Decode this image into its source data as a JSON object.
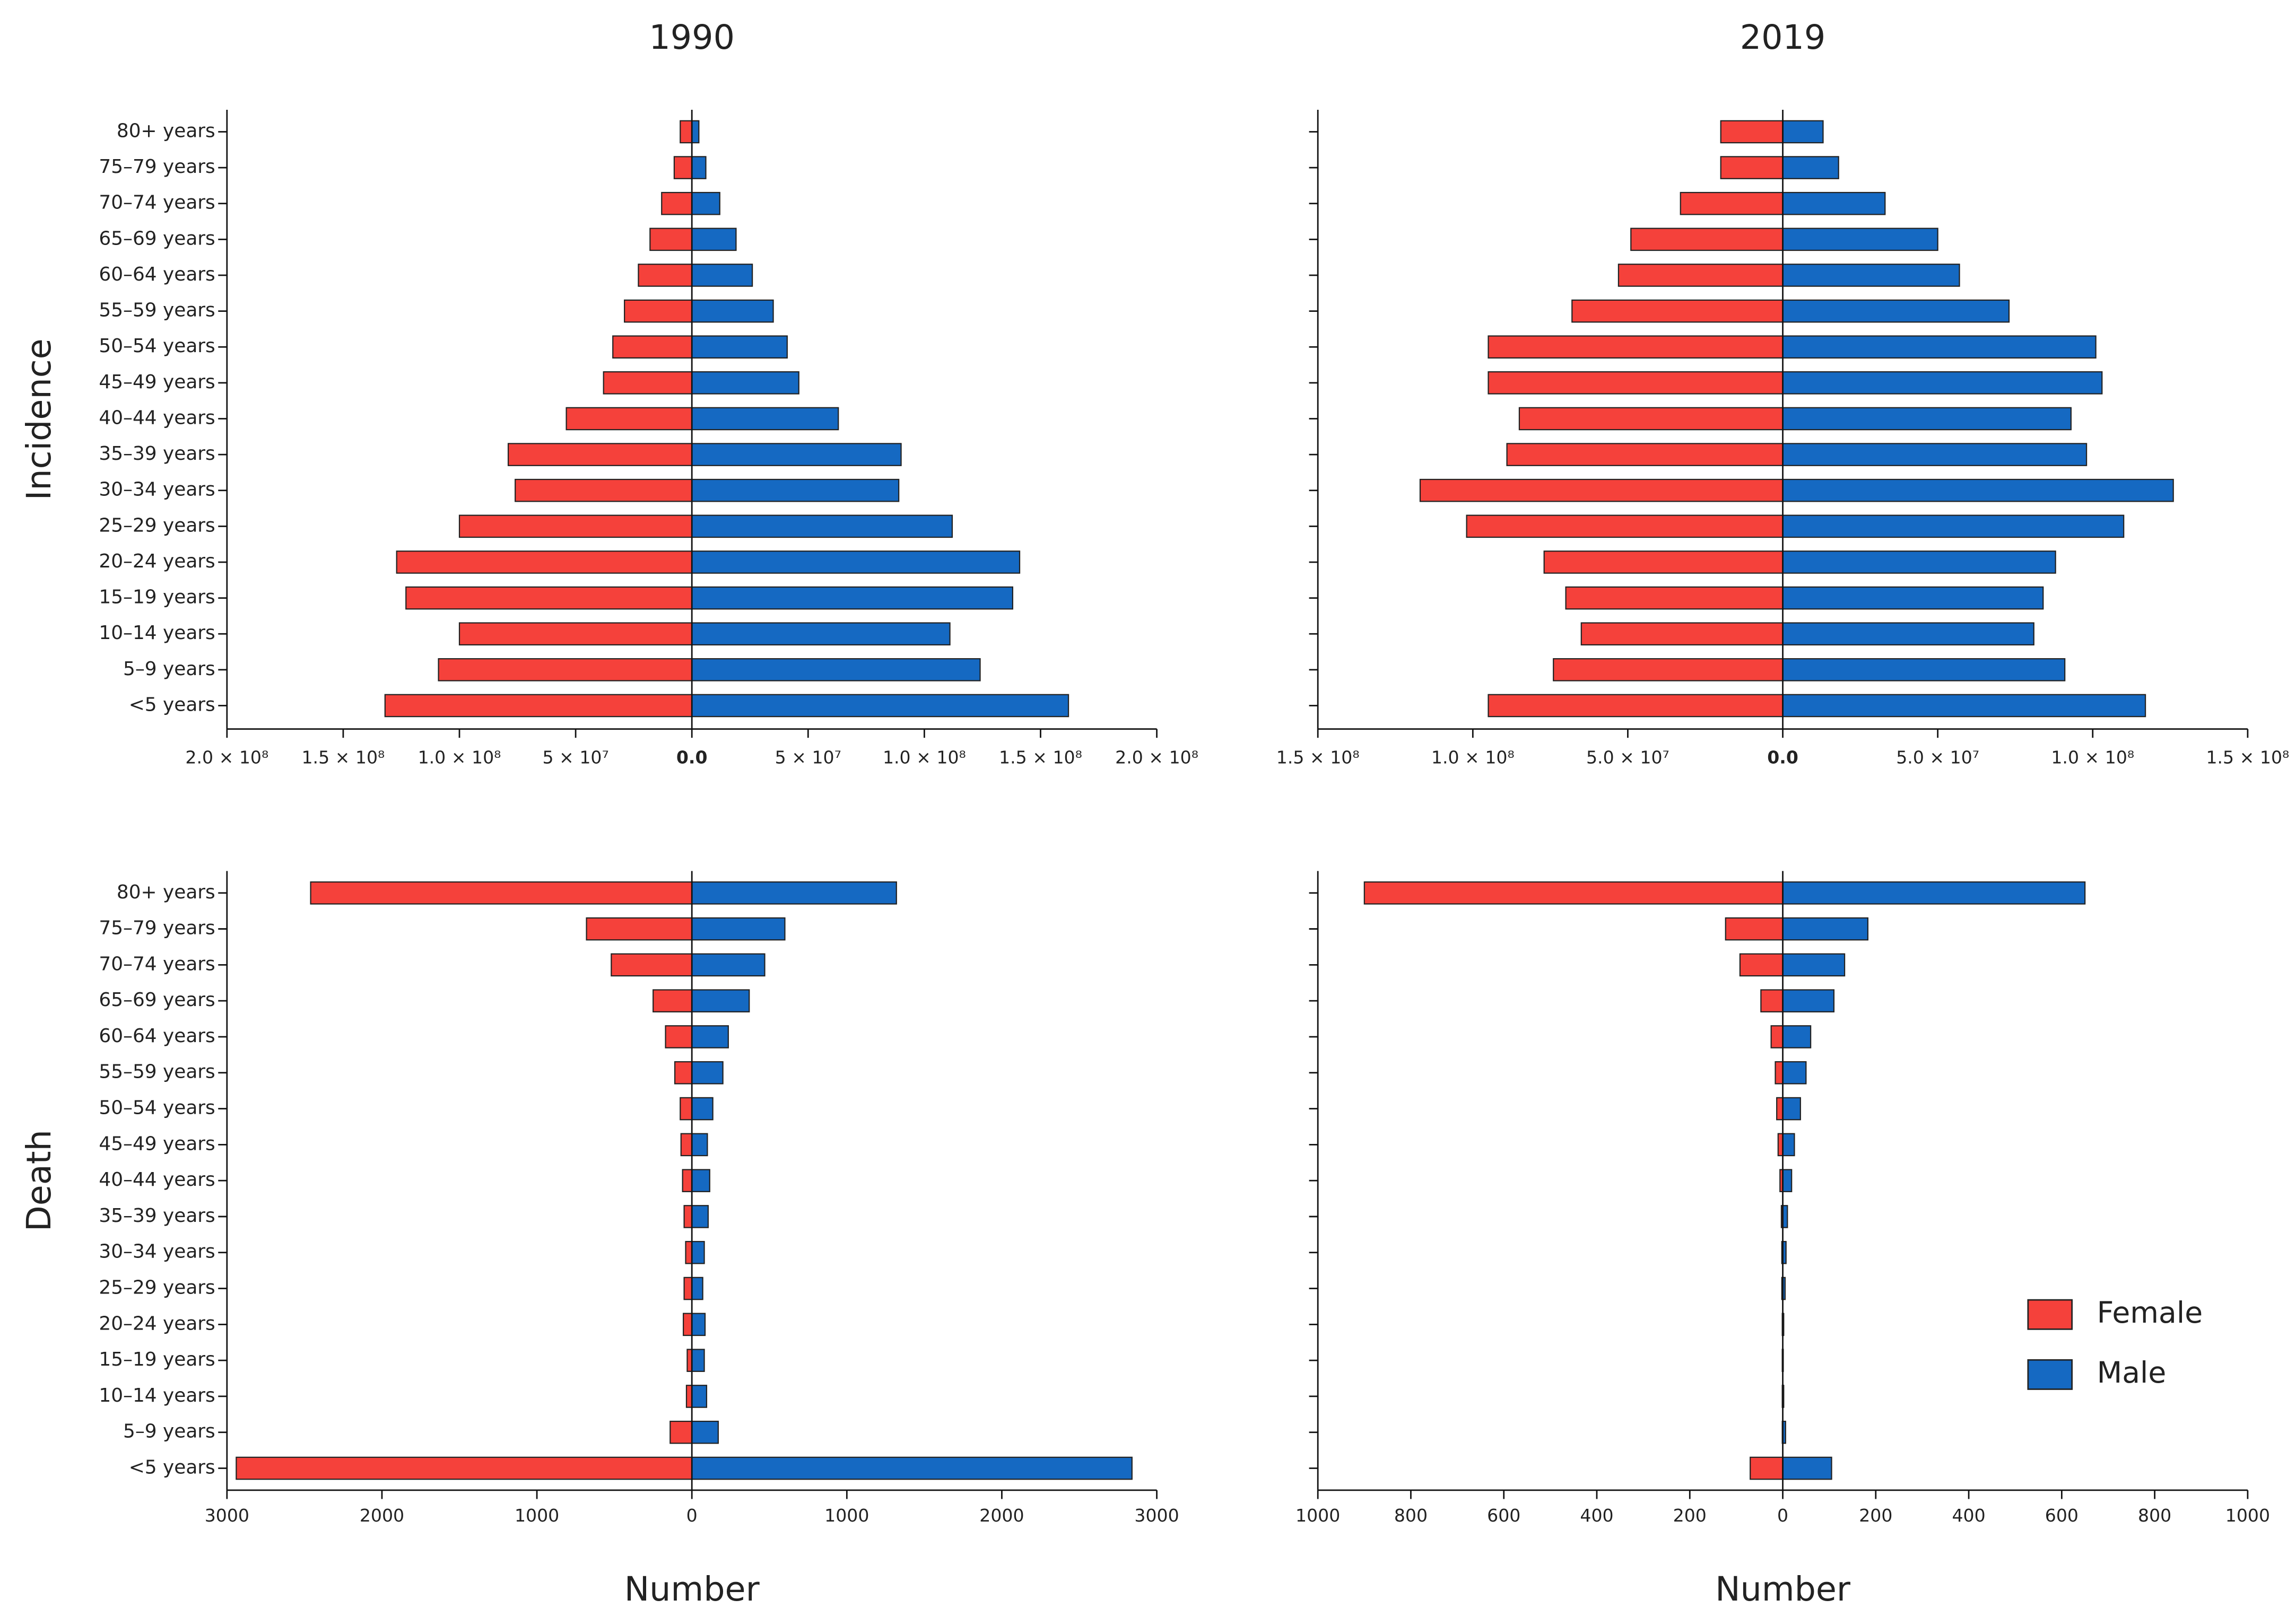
{
  "chart_data": [
    {
      "type": "bar",
      "orientation": "horizontal",
      "title": "1990",
      "ylabel": "Incidence",
      "categories": [
        "80+ years",
        "75–79 years",
        "70–74 years",
        "65–69 years",
        "60–64 years",
        "55–59 years",
        "50–54 years",
        "45–49 years",
        "40–44 years",
        "35–39 years",
        "30–34 years",
        "25–29 years",
        "20–24 years",
        "15–19 years",
        "10–14 years",
        "5–9 years",
        "<5 years"
      ],
      "series": [
        {
          "color": "#f5413b",
          "values": [
            -5000000,
            -7600000,
            -13000000,
            -18000000,
            -23000000,
            -29000000,
            -34000000,
            -38000000,
            -54000000,
            -79000000,
            -76000000,
            -100000000,
            -127000000,
            -123000000,
            -100000000,
            -109000000,
            -132000000
          ]
        },
        {
          "color": "#1569c2",
          "values": [
            3000000,
            6000000,
            12000000,
            19000000,
            26000000,
            35000000,
            41000000,
            46000000,
            63000000,
            90000000,
            89000000,
            112000000,
            141000000,
            138000000,
            111000000,
            124000000,
            162000000
          ]
        }
      ],
      "xlim": [
        -200000000,
        200000000
      ],
      "xticks": [
        {
          "value": -200000000,
          "label": "2.0 × 10⁸"
        },
        {
          "value": -150000000,
          "label": "1.5 × 10⁸"
        },
        {
          "value": -100000000,
          "label": "1.0 × 10⁸"
        },
        {
          "value": -50000000,
          "label": "5 × 10⁷"
        },
        {
          "value": 0,
          "label": "0.0"
        },
        {
          "value": 50000000,
          "label": "5 × 10⁷"
        },
        {
          "value": 100000000,
          "label": "1.0 × 10⁸"
        },
        {
          "value": 150000000,
          "label": "1.5 × 10⁸"
        },
        {
          "value": 200000000,
          "label": "2.0 × 10⁸"
        }
      ]
    },
    {
      "type": "bar",
      "orientation": "horizontal",
      "title": "2019",
      "series": [
        {
          "color": "#f5413b",
          "values": [
            -20000000,
            -20000000,
            -33000000,
            -49000000,
            -53000000,
            -68000000,
            -95000000,
            -95000000,
            -85000000,
            -89000000,
            -117000000,
            -102000000,
            -77000000,
            -70000000,
            -65000000,
            -74000000,
            -95000000
          ]
        },
        {
          "color": "#1569c2",
          "values": [
            13000000,
            18000000,
            33000000,
            50000000,
            57000000,
            73000000,
            101000000,
            103000000,
            93000000,
            98000000,
            126000000,
            110000000,
            88000000,
            84000000,
            81000000,
            91000000,
            117000000
          ]
        }
      ],
      "xlim": [
        -150000000,
        150000000
      ],
      "xticks": [
        {
          "value": -150000000,
          "label": "1.5 × 10⁸"
        },
        {
          "value": -100000000,
          "label": "1.0 × 10⁸"
        },
        {
          "value": -50000000,
          "label": "5.0 × 10⁷"
        },
        {
          "value": 0,
          "label": "0.0"
        },
        {
          "value": 50000000,
          "label": "5.0 × 10⁷"
        },
        {
          "value": 100000000,
          "label": "1.0 × 10⁸"
        },
        {
          "value": 150000000,
          "label": "1.5 × 10⁸"
        }
      ]
    },
    {
      "type": "bar",
      "orientation": "horizontal",
      "ylabel": "Death",
      "xlabel": "Number",
      "categories": [
        "80+ years",
        "75–79 years",
        "70–74 years",
        "65–69 years",
        "60–64 years",
        "55–59 years",
        "50–54 years",
        "45–49 years",
        "40–44 years",
        "35–39 years",
        "30–34 years",
        "25–29 years",
        "20–24 years",
        "15–19 years",
        "10–14 years",
        "5–9 years",
        "<5 years"
      ],
      "series": [
        {
          "color": "#f5413b",
          "values": [
            -2460,
            -680,
            -520,
            -250,
            -170,
            -110,
            -75,
            -70,
            -60,
            -50,
            -40,
            -50,
            -55,
            -30,
            -35,
            -140,
            -2940
          ]
        },
        {
          "color": "#1569c2",
          "values": [
            1320,
            600,
            470,
            370,
            235,
            200,
            135,
            100,
            115,
            105,
            80,
            70,
            85,
            80,
            95,
            170,
            2840
          ]
        }
      ],
      "xlim": [
        -3000,
        3000
      ],
      "xticks": [
        {
          "value": -3000,
          "label": "3000"
        },
        {
          "value": -2000,
          "label": "2000"
        },
        {
          "value": -1000,
          "label": "1000"
        },
        0,
        1000,
        2000,
        3000
      ]
    },
    {
      "type": "bar",
      "orientation": "horizontal",
      "xlabel": "Number",
      "legend": "lower right",
      "series": [
        {
          "name": "Female",
          "color": "#f5413b",
          "values": [
            -900,
            -123,
            -92,
            -47,
            -25,
            -16,
            -13,
            -10,
            -6,
            -3,
            -2,
            -2,
            -1,
            -1,
            -1,
            -1,
            -70
          ]
        },
        {
          "name": "Male",
          "color": "#1569c2",
          "values": [
            650,
            183,
            133,
            110,
            60,
            50,
            38,
            25,
            19,
            10,
            7,
            5,
            2,
            1,
            2,
            6,
            105
          ]
        }
      ],
      "xlim": [
        -1000,
        1000
      ],
      "xticks": [
        {
          "value": -1000,
          "label": "1000"
        },
        {
          "value": -800,
          "label": "800"
        },
        {
          "value": -600,
          "label": "600"
        },
        {
          "value": -400,
          "label": "400"
        },
        {
          "value": -200,
          "label": "200"
        },
        0,
        200,
        400,
        600,
        800,
        1000
      ]
    }
  ]
}
